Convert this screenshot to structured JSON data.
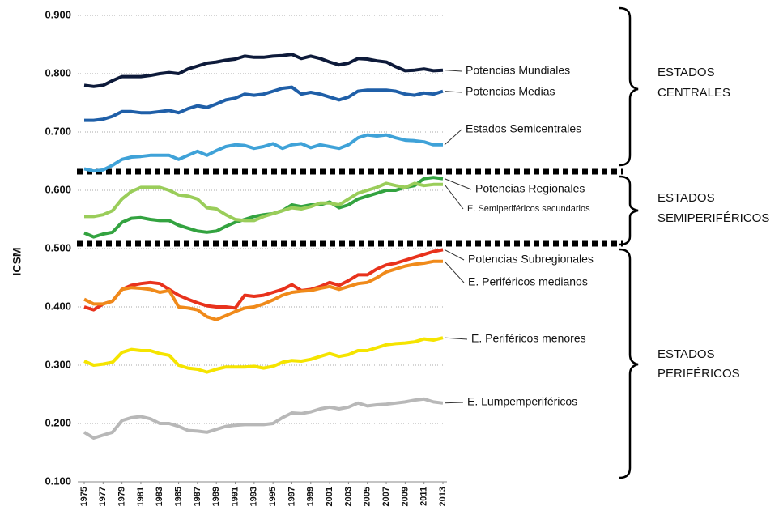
{
  "chart_data": {
    "type": "line",
    "y_label": "ICSM",
    "ylim": [
      0.1,
      0.9
    ],
    "yticks": [
      {
        "value": 0.1,
        "label": "0.100"
      },
      {
        "value": 0.2,
        "label": "0.200"
      },
      {
        "value": 0.3,
        "label": "0.300"
      },
      {
        "value": 0.4,
        "label": "0.400"
      },
      {
        "value": 0.5,
        "label": "0.500"
      },
      {
        "value": 0.6,
        "label": "0.600"
      },
      {
        "value": 0.7,
        "label": "0.700"
      },
      {
        "value": 0.8,
        "label": "0.800"
      },
      {
        "value": 0.9,
        "label": "0.900"
      }
    ],
    "xlim": [
      1975,
      2013
    ],
    "xticks": [
      1975,
      1977,
      1979,
      1981,
      1983,
      1985,
      1987,
      1989,
      1991,
      1993,
      1995,
      1997,
      1999,
      2001,
      2003,
      2005,
      2007,
      2009,
      2011,
      2013
    ],
    "grid": true,
    "x": [
      1975,
      1976,
      1977,
      1978,
      1979,
      1980,
      1981,
      1982,
      1983,
      1984,
      1985,
      1986,
      1987,
      1988,
      1989,
      1990,
      1991,
      1992,
      1993,
      1994,
      1995,
      1996,
      1997,
      1998,
      1999,
      2000,
      2001,
      2002,
      2003,
      2004,
      2005,
      2006,
      2007,
      2008,
      2009,
      2010,
      2011,
      2012,
      2013
    ],
    "series": [
      {
        "name": "Potencias Mundiales",
        "color": "#0d1a3a",
        "values": [
          0.78,
          0.778,
          0.78,
          0.788,
          0.795,
          0.795,
          0.795,
          0.797,
          0.8,
          0.802,
          0.8,
          0.808,
          0.813,
          0.818,
          0.82,
          0.823,
          0.825,
          0.83,
          0.828,
          0.828,
          0.83,
          0.831,
          0.833,
          0.826,
          0.83,
          0.826,
          0.82,
          0.815,
          0.818,
          0.826,
          0.825,
          0.822,
          0.82,
          0.812,
          0.805,
          0.806,
          0.808,
          0.805,
          0.806
        ]
      },
      {
        "name": "Potencias Medias",
        "color": "#1f5fa8",
        "values": [
          0.72,
          0.72,
          0.722,
          0.727,
          0.735,
          0.735,
          0.733,
          0.733,
          0.735,
          0.737,
          0.733,
          0.74,
          0.745,
          0.742,
          0.748,
          0.755,
          0.758,
          0.765,
          0.763,
          0.765,
          0.77,
          0.775,
          0.777,
          0.765,
          0.768,
          0.765,
          0.76,
          0.755,
          0.76,
          0.77,
          0.772,
          0.772,
          0.772,
          0.77,
          0.765,
          0.763,
          0.767,
          0.765,
          0.77
        ]
      },
      {
        "name": "Estados Semicentrales",
        "color": "#3fa2d8",
        "values": [
          0.637,
          0.633,
          0.635,
          0.643,
          0.653,
          0.657,
          0.658,
          0.66,
          0.66,
          0.66,
          0.653,
          0.66,
          0.667,
          0.66,
          0.668,
          0.675,
          0.678,
          0.677,
          0.672,
          0.675,
          0.68,
          0.672,
          0.678,
          0.68,
          0.673,
          0.678,
          0.675,
          0.672,
          0.678,
          0.69,
          0.695,
          0.693,
          0.695,
          0.69,
          0.686,
          0.685,
          0.683,
          0.678,
          0.678
        ]
      },
      {
        "name": "Potencias Regionales",
        "color": "#33a340",
        "values": [
          0.527,
          0.52,
          0.525,
          0.528,
          0.545,
          0.552,
          0.553,
          0.55,
          0.548,
          0.548,
          0.54,
          0.535,
          0.53,
          0.528,
          0.53,
          0.538,
          0.545,
          0.55,
          0.555,
          0.558,
          0.56,
          0.565,
          0.575,
          0.572,
          0.575,
          0.575,
          0.58,
          0.57,
          0.575,
          0.585,
          0.59,
          0.595,
          0.6,
          0.6,
          0.605,
          0.608,
          0.62,
          0.622,
          0.62
        ]
      },
      {
        "name": "E. Semiperiféricos secundarios",
        "color": "#9acd5a",
        "values": [
          0.555,
          0.555,
          0.558,
          0.565,
          0.585,
          0.598,
          0.605,
          0.605,
          0.605,
          0.6,
          0.592,
          0.59,
          0.585,
          0.57,
          0.568,
          0.558,
          0.55,
          0.548,
          0.548,
          0.555,
          0.56,
          0.565,
          0.57,
          0.568,
          0.572,
          0.578,
          0.578,
          0.575,
          0.585,
          0.595,
          0.6,
          0.605,
          0.612,
          0.608,
          0.605,
          0.612,
          0.608,
          0.61,
          0.61
        ]
      },
      {
        "name": "Potencias Subregionales",
        "color": "#e8321c",
        "values": [
          0.4,
          0.395,
          0.405,
          0.41,
          0.43,
          0.437,
          0.44,
          0.442,
          0.44,
          0.43,
          0.42,
          0.413,
          0.407,
          0.402,
          0.4,
          0.4,
          0.398,
          0.42,
          0.418,
          0.42,
          0.425,
          0.43,
          0.438,
          0.428,
          0.43,
          0.435,
          0.442,
          0.437,
          0.445,
          0.455,
          0.455,
          0.465,
          0.472,
          0.475,
          0.48,
          0.485,
          0.49,
          0.495,
          0.498
        ]
      },
      {
        "name": "E. Periféricos medianos",
        "color": "#f08a1a",
        "values": [
          0.413,
          0.405,
          0.405,
          0.41,
          0.43,
          0.433,
          0.432,
          0.43,
          0.425,
          0.428,
          0.4,
          0.398,
          0.395,
          0.383,
          0.378,
          0.385,
          0.392,
          0.398,
          0.4,
          0.405,
          0.412,
          0.42,
          0.425,
          0.427,
          0.428,
          0.432,
          0.435,
          0.43,
          0.435,
          0.44,
          0.442,
          0.45,
          0.46,
          0.465,
          0.47,
          0.473,
          0.475,
          0.478,
          0.478
        ]
      },
      {
        "name": "E. Periféricos menores",
        "color": "#f5e400",
        "values": [
          0.307,
          0.3,
          0.302,
          0.305,
          0.322,
          0.327,
          0.325,
          0.325,
          0.32,
          0.317,
          0.3,
          0.295,
          0.293,
          0.288,
          0.293,
          0.297,
          0.297,
          0.297,
          0.298,
          0.295,
          0.298,
          0.305,
          0.308,
          0.307,
          0.31,
          0.315,
          0.32,
          0.315,
          0.318,
          0.325,
          0.325,
          0.33,
          0.335,
          0.337,
          0.338,
          0.34,
          0.345,
          0.343,
          0.347
        ]
      },
      {
        "name": "E. Lumpemperiféricos",
        "color": "#b8b8b8",
        "values": [
          0.185,
          0.175,
          0.18,
          0.185,
          0.205,
          0.21,
          0.212,
          0.208,
          0.2,
          0.2,
          0.195,
          0.188,
          0.187,
          0.185,
          0.19,
          0.195,
          0.197,
          0.198,
          0.198,
          0.198,
          0.2,
          0.21,
          0.218,
          0.217,
          0.22,
          0.225,
          0.228,
          0.225,
          0.228,
          0.235,
          0.23,
          0.232,
          0.233,
          0.235,
          0.237,
          0.24,
          0.242,
          0.237,
          0.235
        ]
      }
    ],
    "groups": [
      {
        "lines": [
          "ESTADOS",
          "CENTRALES"
        ]
      },
      {
        "lines": [
          "ESTADOS",
          "SEMIPERIFÉRICOS"
        ]
      },
      {
        "lines": [
          "ESTADOS",
          "PERIFÉRICOS"
        ]
      }
    ]
  }
}
